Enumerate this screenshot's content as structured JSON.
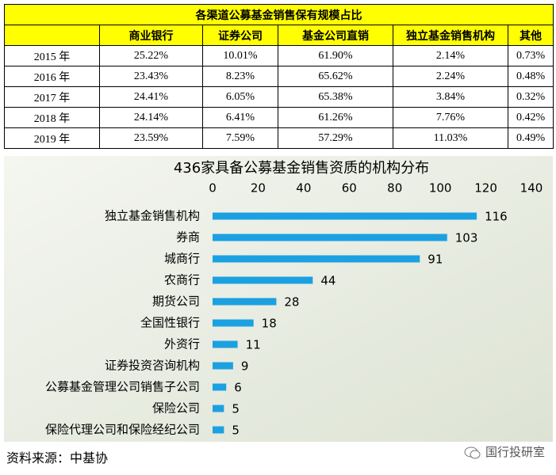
{
  "table": {
    "title": "各渠道公募基金销售保有规模占比",
    "header": [
      "",
      "商业银行",
      "证券公司",
      "基金公司直销",
      "独立基金销售机构",
      "其他"
    ],
    "rows": [
      [
        "2015 年",
        "25.22%",
        "10.01%",
        "61.90%",
        "2.14%",
        "0.73%"
      ],
      [
        "2016 年",
        "23.43%",
        "8.23%",
        "65.62%",
        "2.24%",
        "0.48%"
      ],
      [
        "2017 年",
        "24.41%",
        "6.05%",
        "65.38%",
        "3.84%",
        "0.32%"
      ],
      [
        "2018 年",
        "24.14%",
        "6.41%",
        "61.26%",
        "7.76%",
        "0.42%"
      ],
      [
        "2019 年",
        "23.59%",
        "7.59%",
        "57.29%",
        "11.03%",
        "0.49%"
      ]
    ]
  },
  "chart_data": {
    "type": "hbar",
    "title": "436家具备公募基金销售资质的机构分布",
    "categories": [
      "独立基金销售机构",
      "券商",
      "城商行",
      "农商行",
      "期货公司",
      "全国性银行",
      "外资行",
      "证券投资咨询机构",
      "公募基金管理公司销售子公司",
      "保险公司",
      "保险代理公司和保险经纪公司"
    ],
    "values": [
      116,
      103,
      91,
      44,
      28,
      18,
      11,
      9,
      6,
      5,
      5
    ],
    "color": "#1ba1e2",
    "xlim": [
      0,
      140
    ],
    "xticks": [
      0,
      20,
      40,
      60,
      80,
      100,
      120,
      140
    ]
  },
  "footer": {
    "source": "资料来源：中基协",
    "watermark": "国行投研室"
  }
}
